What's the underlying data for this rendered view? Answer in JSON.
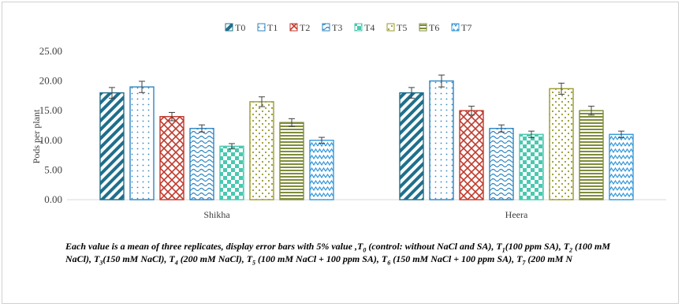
{
  "chart_data": {
    "type": "bar",
    "title": "",
    "xlabel": "",
    "ylabel": "Pods per plant",
    "ylim": [
      0,
      25
    ],
    "yticks": [
      "0.00",
      "5.00",
      "10.00",
      "15.00",
      "20.00",
      "25.00"
    ],
    "categories": [
      "Shikha",
      "Heera"
    ],
    "legend_position": "top",
    "error_bars": "5%",
    "series": [
      {
        "name": "T0",
        "values": [
          18.0,
          18.0
        ],
        "pattern": "diag-stripes",
        "color": "#1f6f8b"
      },
      {
        "name": "T1",
        "values": [
          19.0,
          20.0
        ],
        "pattern": "dots",
        "color": "#2e86c1"
      },
      {
        "name": "T2",
        "values": [
          14.0,
          15.0
        ],
        "pattern": "red-lattice",
        "color": "#c0392b"
      },
      {
        "name": "T3",
        "values": [
          12.0,
          12.0
        ],
        "pattern": "waves",
        "color": "#2e86c1"
      },
      {
        "name": "T4",
        "values": [
          9.0,
          11.0
        ],
        "pattern": "checker",
        "color": "#48c9b0"
      },
      {
        "name": "T5",
        "values": [
          16.5,
          18.7
        ],
        "pattern": "olive-dots",
        "color": "#9a9a2e"
      },
      {
        "name": "T6",
        "values": [
          13.0,
          15.0
        ],
        "pattern": "horizontal-lines",
        "color": "#7f8c3a"
      },
      {
        "name": "T7",
        "values": [
          10.0,
          11.0
        ],
        "pattern": "zigzag",
        "color": "#3498db"
      }
    ]
  },
  "caption": {
    "p1": "Each value is a mean of three replicates, display error bars with 5% value ,T",
    "s1": "0",
    "p2": " (control: without NaCl and SA), T",
    "s2": "1",
    "p3": "(100 ppm SA), T",
    "s3": "2",
    "p4": " (100 mM NaCl),  T",
    "s4": "3",
    "p5": "(150 mM NaCl), T",
    "s5": "4",
    "p6": " (200 mM NaCl), T",
    "s6": "5",
    "p7": " (100 mM NaCl + 100 ppm SA), T",
    "s7": "6",
    "p8": " (150 mM NaCl + 100 ppm SA), T",
    "s8": "7",
    "p9": " (200 mM N"
  }
}
